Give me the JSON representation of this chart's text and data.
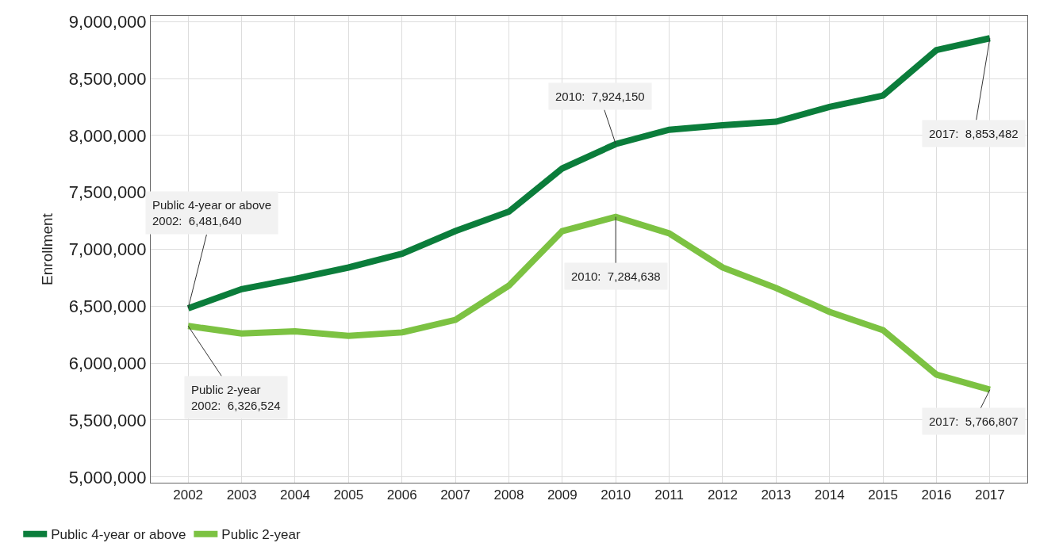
{
  "chart_data": {
    "type": "line",
    "ylabel": "Enrollment",
    "categories": [
      "2002",
      "2003",
      "2004",
      "2005",
      "2006",
      "2007",
      "2008",
      "2009",
      "2010",
      "2011",
      "2012",
      "2013",
      "2014",
      "2015",
      "2016",
      "2017"
    ],
    "series": [
      {
        "name": "Public 4-year or above",
        "color": "#0b7d3b",
        "values": [
          6481640,
          6650000,
          6740000,
          6840000,
          6960000,
          7160000,
          7330000,
          7710000,
          7924150,
          8050000,
          8090000,
          8120000,
          8250000,
          8350000,
          8750000,
          8853482
        ]
      },
      {
        "name": "Public 2-year",
        "color": "#7cc242",
        "values": [
          6326524,
          6260000,
          6280000,
          6240000,
          6270000,
          6380000,
          6680000,
          7160000,
          7284638,
          7140000,
          6840000,
          6660000,
          6450000,
          6290000,
          5900000,
          5766807
        ]
      }
    ],
    "ylim": [
      4950000,
      9050000
    ],
    "yticks": [
      {
        "value": 5000000,
        "label": "5,000,000"
      },
      {
        "value": 5500000,
        "label": "5,500,000"
      },
      {
        "value": 6000000,
        "label": "6,000,000"
      },
      {
        "value": 6500000,
        "label": "6,500,000"
      },
      {
        "value": 7000000,
        "label": "7,000,000"
      },
      {
        "value": 7500000,
        "label": "7,500,000"
      },
      {
        "value": 8000000,
        "label": "8,000,000"
      },
      {
        "value": 8500000,
        "label": "8,500,000"
      },
      {
        "value": 9000000,
        "label": "9,000,000"
      }
    ],
    "annotations": [
      {
        "text": "Public 4-year or above\n2002:  6,481,640",
        "x": "2002",
        "y": 6481640
      },
      {
        "text": "Public 2-year\n2002:  6,326,524",
        "x": "2002",
        "y": 6326524
      },
      {
        "text": "2010:  7,924,150",
        "x": "2010",
        "y": 7924150
      },
      {
        "text": "2010:  7,284,638",
        "x": "2010",
        "y": 7284638
      },
      {
        "text": "2017:  8,853,482",
        "x": "2017",
        "y": 8853482
      },
      {
        "text": "2017:  5,766,807",
        "x": "2017",
        "y": 5766807
      }
    ],
    "grid": true,
    "legend": "bottom left",
    "marker": "none",
    "line_style": "solid"
  }
}
